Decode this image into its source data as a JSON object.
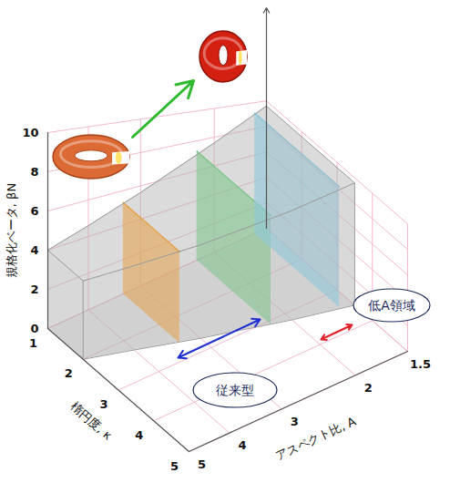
{
  "chart_data": {
    "type": "3d_area",
    "x_label": "アスペクト比, A",
    "xlim": [
      1.5,
      5
    ],
    "xticks": [
      1.5,
      2,
      3,
      4,
      5
    ],
    "log": "x",
    "z_label": "楕円度, κ",
    "zlim": [
      1,
      5
    ],
    "zticks": [
      1,
      2,
      3,
      4,
      5
    ],
    "y_label": "規格化ベータ, βN",
    "ylim": [
      0,
      10
    ],
    "yticks": [
      0,
      2,
      4,
      6,
      8,
      10
    ],
    "grid": true,
    "envelope": {
      "x": [
        5,
        4,
        3,
        2,
        1.5
      ],
      "z": [
        2,
        2.3,
        2.7,
        3.2,
        3.5
      ],
      "values": [
        4,
        4.6,
        5.6,
        7.6,
        9.6
      ],
      "color": "#b4b4b4"
    },
    "slices": [
      {
        "x": 3.3,
        "z": [
          1,
          2.6
        ],
        "value": 5.3,
        "color": "#f5a030"
      },
      {
        "x": 2.2,
        "z": [
          1,
          3.1
        ],
        "value": 7.3,
        "color": "#70cc80"
      },
      {
        "x": 1.6,
        "z": [
          1,
          3.4
        ],
        "value": 9.2,
        "color": "#80cfe8"
      }
    ],
    "annotations": [
      {
        "text": "従来型",
        "color": "#1f2fd0"
      },
      {
        "text": "低A領域",
        "color": "#e0202a"
      }
    ]
  }
}
